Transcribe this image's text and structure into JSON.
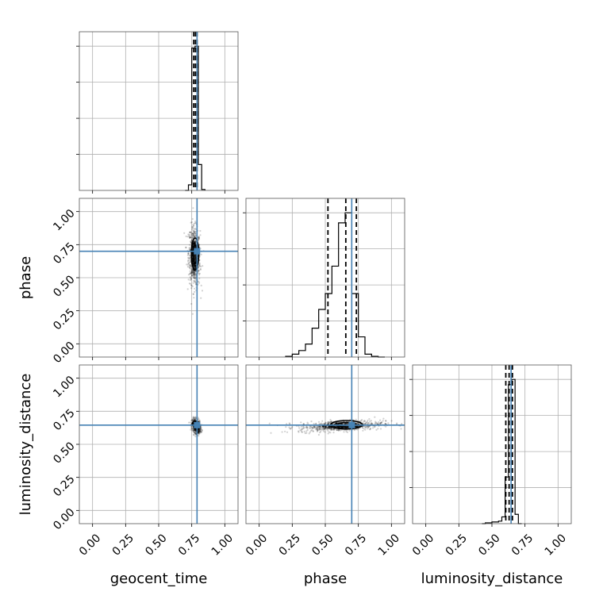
{
  "chart_data": {
    "type": "corner",
    "parameters": [
      {
        "key": "geocent_time",
        "label": "geocent_time"
      },
      {
        "key": "phase",
        "label": "phase"
      },
      {
        "key": "luminosity_distance",
        "label": "luminosity_distance"
      }
    ],
    "axis_range": [
      -0.1,
      1.1
    ],
    "ticks": [
      {
        "value": 0.0,
        "label": "0.00"
      },
      {
        "value": 0.25,
        "label": "0.25"
      },
      {
        "value": 0.5,
        "label": "0.50"
      },
      {
        "value": 0.75,
        "label": "0.75"
      },
      {
        "value": 1.0,
        "label": "1.00"
      }
    ],
    "grid": true,
    "truths": {
      "geocent_time": 0.79,
      "phase": 0.7,
      "luminosity_distance": 0.645
    },
    "quantiles": {
      "geocent_time": [
        0.765,
        0.778,
        0.79
      ],
      "phase": [
        0.52,
        0.655,
        0.735
      ],
      "luminosity_distance": [
        0.605,
        0.63,
        0.655
      ]
    },
    "histograms": {
      "geocent_time": {
        "bins": [
          0.7,
          0.725,
          0.75,
          0.775,
          0.8,
          0.825,
          0.85
        ],
        "counts": [
          0,
          0.03,
          0.77,
          0.78,
          0.14,
          0.005
        ]
      },
      "phase": {
        "bins": [
          0.2,
          0.25,
          0.3,
          0.35,
          0.4,
          0.45,
          0.5,
          0.55,
          0.6,
          0.65,
          0.7,
          0.75,
          0.8,
          0.85,
          0.9,
          0.95
        ],
        "counts": [
          0.005,
          0.02,
          0.045,
          0.09,
          0.2,
          0.33,
          0.44,
          0.63,
          0.93,
          1.0,
          0.44,
          0.14,
          0.02,
          0.005,
          0.0
        ]
      },
      "luminosity_distance": {
        "bins": [
          0.425,
          0.45,
          0.475,
          0.5,
          0.525,
          0.55,
          0.575,
          0.6,
          0.625,
          0.65,
          0.675,
          0.7,
          0.725
        ],
        "counts": [
          0.0,
          0.005,
          0.005,
          0.01,
          0.01,
          0.015,
          0.04,
          0.275,
          0.82,
          0.85,
          0.055,
          0.0
        ]
      }
    },
    "samples_2d": [
      {
        "x": "geocent_time",
        "y": "phase",
        "center": [
          0.77,
          0.66
        ],
        "spread": [
          0.022,
          0.11
        ],
        "slope": -2.2
      },
      {
        "x": "geocent_time",
        "y": "luminosity_distance",
        "center": [
          0.785,
          0.635
        ],
        "spread": [
          0.015,
          0.025
        ],
        "slope": -1.5
      },
      {
        "x": "phase",
        "y": "luminosity_distance",
        "center": [
          0.62,
          0.64
        ],
        "spread": [
          0.16,
          0.02
        ],
        "slope": 0.15
      }
    ],
    "contours_2d": [
      {
        "x": "geocent_time",
        "y": "phase",
        "center": [
          0.775,
          0.68
        ],
        "radii": [
          0.028,
          0.12
        ]
      },
      {
        "x": "geocent_time",
        "y": "luminosity_distance",
        "center": [
          0.778,
          0.655
        ],
        "radii": [
          0.025,
          0.02
        ]
      },
      {
        "x": "phase",
        "y": "luminosity_distance",
        "center": [
          0.66,
          0.648
        ],
        "radii": [
          0.12,
          0.032
        ]
      }
    ]
  }
}
